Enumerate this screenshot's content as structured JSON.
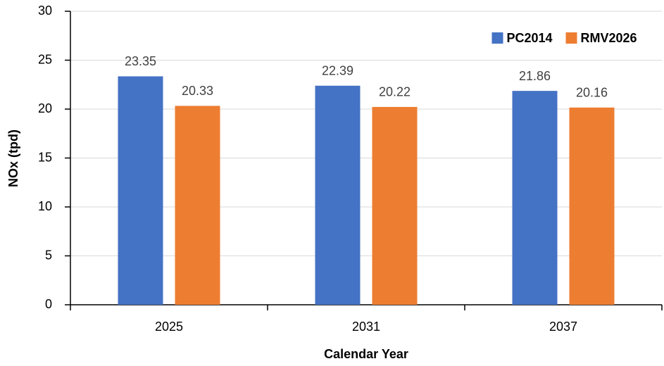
{
  "chart_data": {
    "type": "bar",
    "x_label": "Calendar Year",
    "y_label": "NOx (tpd)",
    "categories": [
      "2025",
      "2031",
      "2037"
    ],
    "series": [
      {
        "name": "PC2014",
        "color": "#4472c4",
        "values": [
          23.35,
          22.39,
          21.86
        ]
      },
      {
        "name": "RMV2026",
        "color": "#ed7d31",
        "values": [
          20.33,
          20.22,
          20.16
        ]
      }
    ],
    "ylim": [
      0,
      30
    ],
    "yticks": [
      0,
      5,
      10,
      15,
      20,
      25,
      30
    ],
    "grid": true,
    "legend": "upper right",
    "data_labels": true
  }
}
